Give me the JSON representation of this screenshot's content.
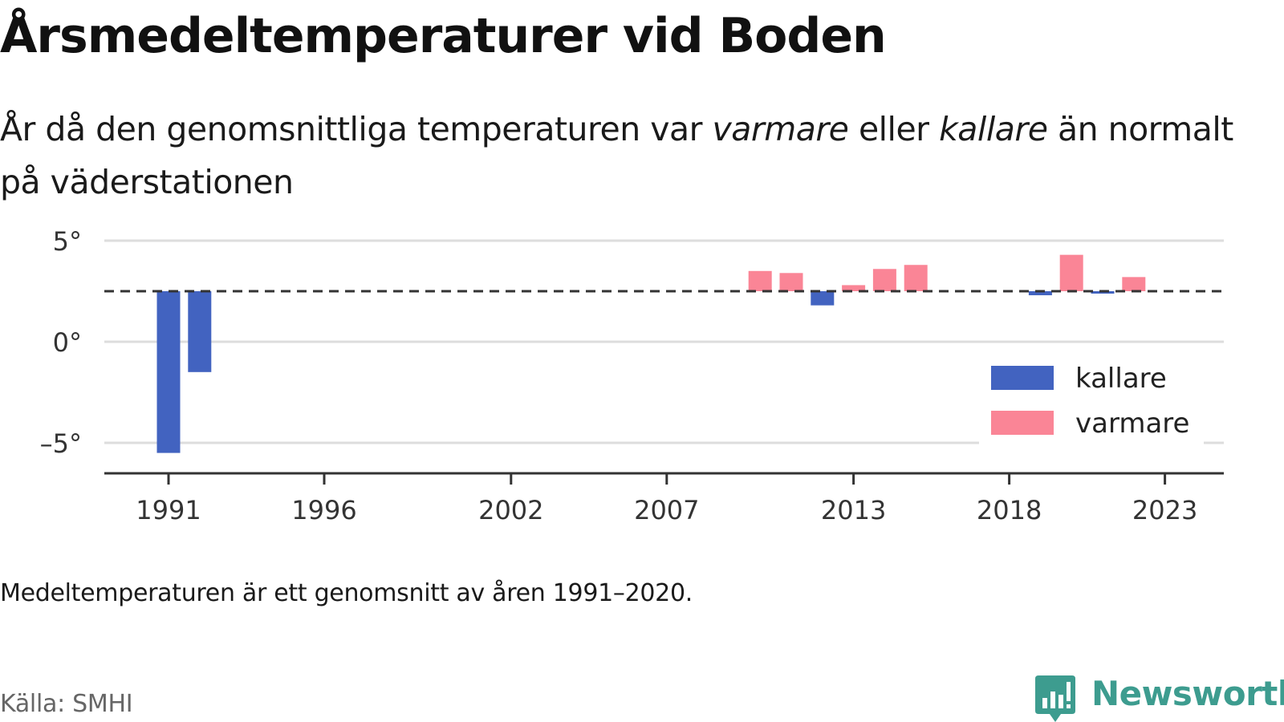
{
  "title": "Årsmedeltemperaturer vid Boden",
  "subtitle": {
    "part1": "År då den genomsnittliga temperaturen var ",
    "warm_word": "varmare",
    "part2": " eller ",
    "cold_word": "kallare",
    "part3": " än normalt på väderstationen"
  },
  "note": "Medeltemperaturen är ett genomsnitt av åren 1991–2020.",
  "source": "Källa: SMHI",
  "brand": {
    "name": "Newsworthy",
    "icon": "bar-chart-speech-icon",
    "color": "#3d9c8f"
  },
  "chart_data": {
    "type": "bar",
    "baseline": 2.5,
    "baseline_style": "dashed",
    "ylim": [
      -6,
      5
    ],
    "yticks": [
      5,
      0,
      -5
    ],
    "ytick_labels": [
      "5°",
      "0°",
      "–5°"
    ],
    "xlim": [
      1989,
      2025
    ],
    "xticks": [
      1991,
      1996,
      2002,
      2007,
      2013,
      2018,
      2023
    ],
    "xtick_labels": [
      "1991",
      "1996",
      "2002",
      "2007",
      "2013",
      "2018",
      "2023"
    ],
    "grid": true,
    "legend_position": "right",
    "colors": {
      "kallare": "#4263c0",
      "varmare": "#fa8596"
    },
    "series": [
      {
        "name": "kallare",
        "color": "#4263c0",
        "x": [
          1991,
          1992,
          2012,
          2019,
          2021
        ],
        "values": [
          -5.5,
          -1.5,
          1.8,
          2.3,
          2.4
        ]
      },
      {
        "name": "varmare",
        "color": "#fa8596",
        "x": [
          2010,
          2011,
          2013,
          2014,
          2015,
          2020,
          2022
        ],
        "values": [
          3.5,
          3.4,
          2.8,
          3.6,
          3.8,
          4.3,
          3.2
        ]
      }
    ]
  }
}
